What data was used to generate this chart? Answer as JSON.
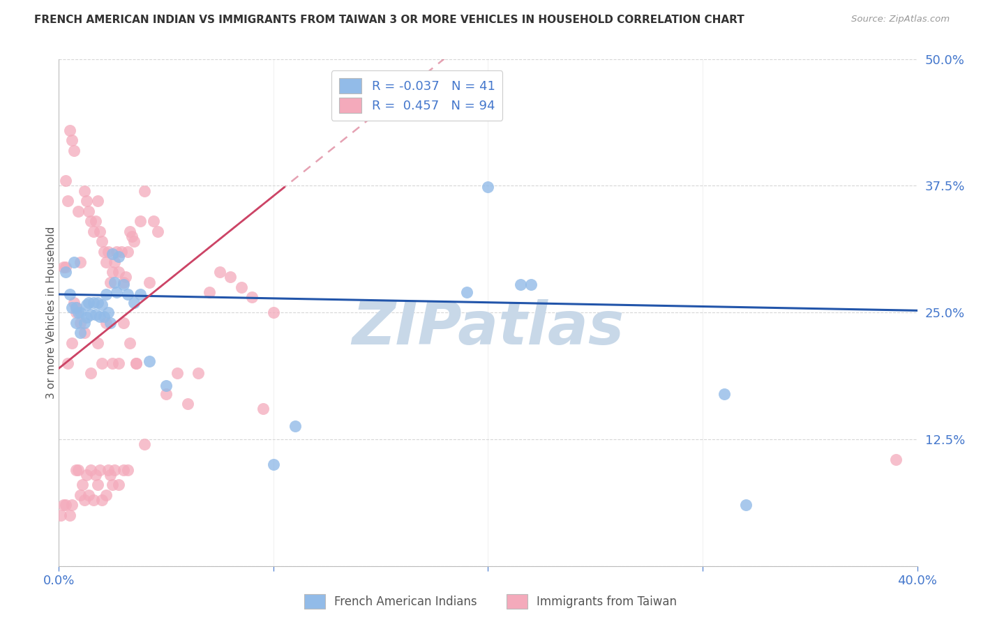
{
  "title": "FRENCH AMERICAN INDIAN VS IMMIGRANTS FROM TAIWAN 3 OR MORE VEHICLES IN HOUSEHOLD CORRELATION CHART",
  "source": "Source: ZipAtlas.com",
  "ylabel": "3 or more Vehicles in Household",
  "xlim": [
    0.0,
    0.4
  ],
  "ylim": [
    0.0,
    0.5
  ],
  "yticks": [
    0.0,
    0.125,
    0.25,
    0.375,
    0.5
  ],
  "ytick_labels": [
    "",
    "12.5%",
    "25.0%",
    "37.5%",
    "50.0%"
  ],
  "xticks": [
    0.0,
    0.1,
    0.2,
    0.3,
    0.4
  ],
  "xtick_labels": [
    "0.0%",
    "",
    "",
    "",
    "40.0%"
  ],
  "r1": "-0.037",
  "n1": "41",
  "r2": "0.457",
  "n2": "94",
  "blue_color": "#92BBE8",
  "pink_color": "#F4AABB",
  "blue_line_color": "#2255AA",
  "pink_line_color": "#CC4466",
  "axis_label_color": "#4477CC",
  "watermark_color": "#C8D8E8",
  "watermark": "ZIPatlas",
  "blue_scatter_x": [
    0.003,
    0.005,
    0.006,
    0.007,
    0.008,
    0.008,
    0.009,
    0.01,
    0.01,
    0.012,
    0.013,
    0.013,
    0.014,
    0.015,
    0.016,
    0.017,
    0.018,
    0.019,
    0.02,
    0.021,
    0.022,
    0.023,
    0.024,
    0.025,
    0.026,
    0.027,
    0.028,
    0.03,
    0.032,
    0.035,
    0.038,
    0.042,
    0.05,
    0.1,
    0.11,
    0.19,
    0.2,
    0.215,
    0.22,
    0.31,
    0.32
  ],
  "blue_scatter_y": [
    0.29,
    0.268,
    0.255,
    0.3,
    0.255,
    0.24,
    0.25,
    0.25,
    0.23,
    0.24,
    0.258,
    0.245,
    0.26,
    0.248,
    0.26,
    0.248,
    0.26,
    0.246,
    0.258,
    0.246,
    0.268,
    0.25,
    0.24,
    0.308,
    0.28,
    0.27,
    0.305,
    0.278,
    0.268,
    0.26,
    0.268,
    0.202,
    0.178,
    0.1,
    0.138,
    0.27,
    0.374,
    0.278,
    0.278,
    0.17,
    0.06
  ],
  "pink_scatter_x": [
    0.001,
    0.002,
    0.002,
    0.003,
    0.003,
    0.004,
    0.005,
    0.005,
    0.006,
    0.006,
    0.007,
    0.007,
    0.008,
    0.008,
    0.009,
    0.009,
    0.01,
    0.01,
    0.011,
    0.012,
    0.012,
    0.013,
    0.013,
    0.014,
    0.014,
    0.015,
    0.015,
    0.016,
    0.016,
    0.017,
    0.017,
    0.018,
    0.018,
    0.019,
    0.019,
    0.02,
    0.02,
    0.021,
    0.022,
    0.022,
    0.023,
    0.023,
    0.024,
    0.024,
    0.025,
    0.025,
    0.026,
    0.026,
    0.027,
    0.028,
    0.028,
    0.029,
    0.03,
    0.03,
    0.031,
    0.032,
    0.032,
    0.033,
    0.034,
    0.035,
    0.036,
    0.038,
    0.04,
    0.042,
    0.044,
    0.046,
    0.05,
    0.055,
    0.06,
    0.065,
    0.07,
    0.075,
    0.08,
    0.085,
    0.09,
    0.095,
    0.1,
    0.003,
    0.004,
    0.006,
    0.008,
    0.01,
    0.012,
    0.015,
    0.018,
    0.02,
    0.022,
    0.025,
    0.028,
    0.03,
    0.033,
    0.036,
    0.04,
    0.39
  ],
  "pink_scatter_y": [
    0.05,
    0.06,
    0.295,
    0.06,
    0.38,
    0.36,
    0.05,
    0.43,
    0.06,
    0.42,
    0.26,
    0.41,
    0.095,
    0.25,
    0.095,
    0.35,
    0.07,
    0.3,
    0.08,
    0.065,
    0.37,
    0.09,
    0.36,
    0.07,
    0.35,
    0.095,
    0.34,
    0.065,
    0.33,
    0.09,
    0.34,
    0.08,
    0.36,
    0.095,
    0.33,
    0.065,
    0.32,
    0.31,
    0.07,
    0.3,
    0.095,
    0.31,
    0.09,
    0.28,
    0.08,
    0.29,
    0.095,
    0.3,
    0.31,
    0.08,
    0.29,
    0.31,
    0.095,
    0.28,
    0.285,
    0.095,
    0.31,
    0.33,
    0.325,
    0.32,
    0.2,
    0.34,
    0.37,
    0.28,
    0.34,
    0.33,
    0.17,
    0.19,
    0.16,
    0.19,
    0.27,
    0.29,
    0.285,
    0.275,
    0.265,
    0.155,
    0.25,
    0.295,
    0.2,
    0.22,
    0.255,
    0.24,
    0.23,
    0.19,
    0.22,
    0.2,
    0.24,
    0.2,
    0.2,
    0.24,
    0.22,
    0.2,
    0.12,
    0.105
  ]
}
